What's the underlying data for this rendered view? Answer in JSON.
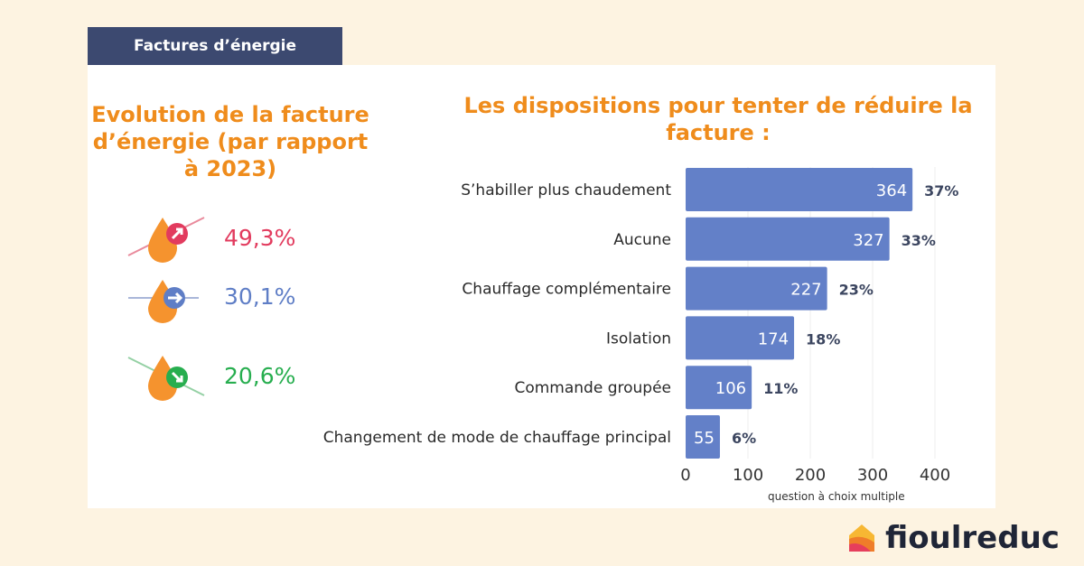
{
  "header": {
    "tag": "Factures d’énergie"
  },
  "left": {
    "title": "Evolution de la facture d’énergie (par rapport à 2023)",
    "items": [
      {
        "icon": "oil-drop-arrow-up-icon",
        "value": "49,3%",
        "color": "#e23b5e"
      },
      {
        "icon": "oil-drop-arrow-right-icon",
        "value": "30,1%",
        "color": "#5f7ec6"
      },
      {
        "icon": "oil-drop-arrow-down-icon",
        "value": "20,6%",
        "color": "#27ae4f"
      }
    ]
  },
  "chart_data": {
    "type": "bar",
    "orientation": "horizontal",
    "title": "Les dispositions pour tenter de réduire la facture :",
    "categories": [
      "S’habiller plus chaudement",
      "Aucune",
      "Chauffage complémentaire",
      "Isolation",
      "Commande groupée",
      "Changement de mode de chauffage principal"
    ],
    "values": [
      364,
      327,
      227,
      174,
      106,
      55
    ],
    "percent_labels": [
      "37%",
      "33%",
      "23%",
      "18%",
      "11%",
      "6%"
    ],
    "xlim": [
      0,
      400
    ],
    "xticks": [
      "0",
      "100",
      "200",
      "300",
      "400"
    ],
    "xlabel": "question à choix multiple",
    "bar_color": "#6380c8",
    "grid": true
  },
  "brand": {
    "name": "fioulreduc"
  }
}
